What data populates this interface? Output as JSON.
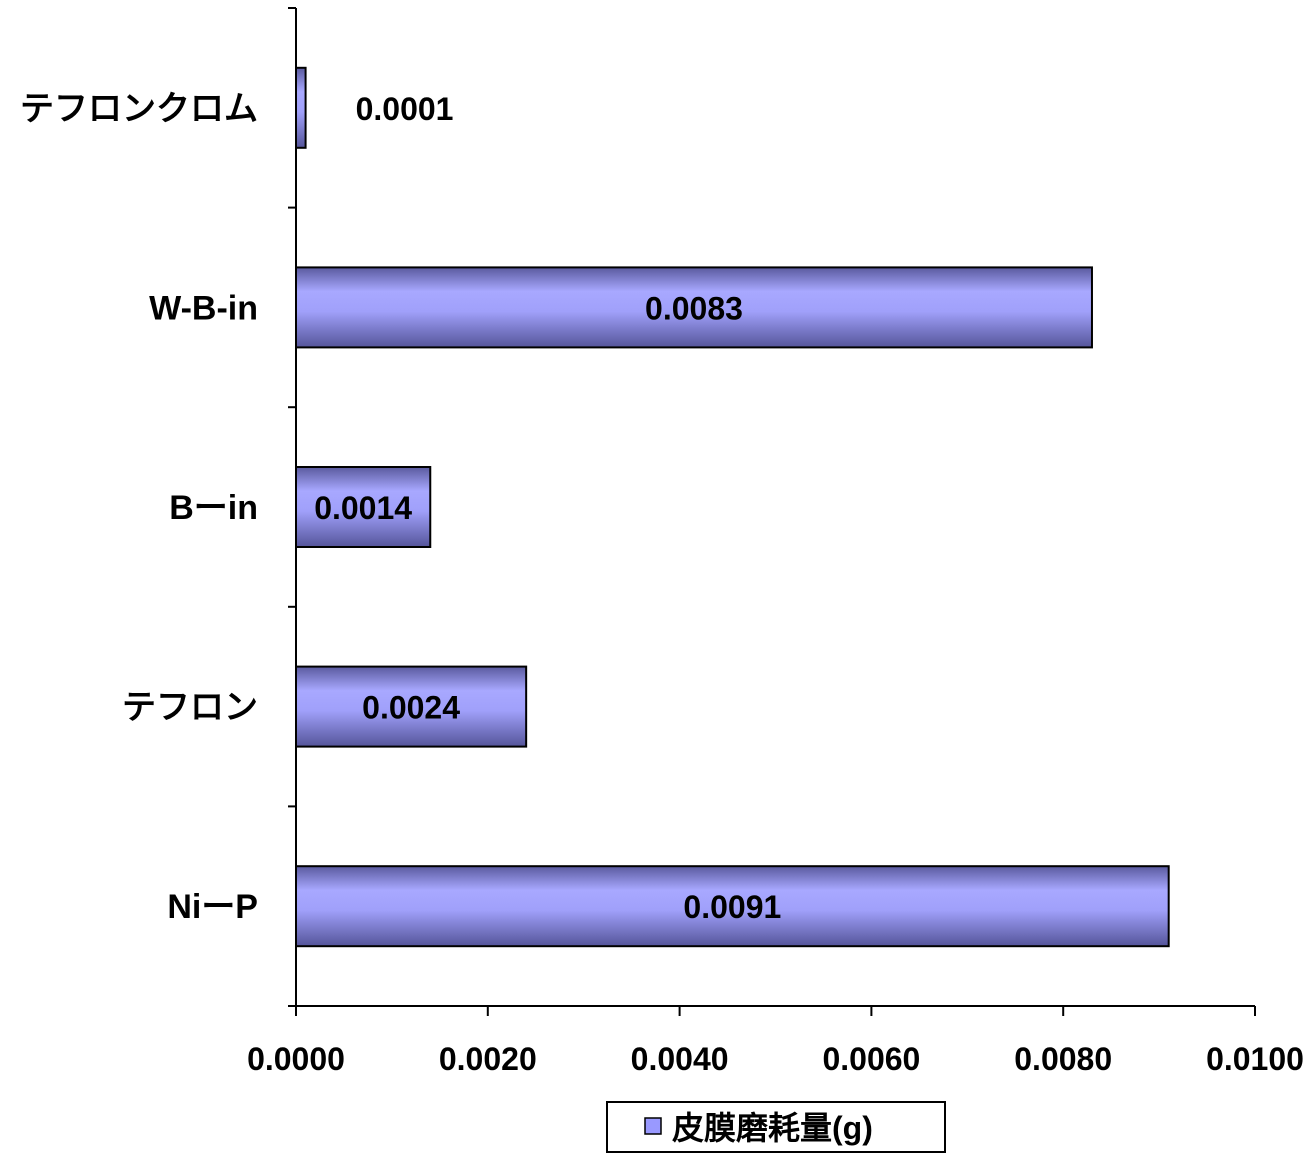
{
  "chart_data": {
    "type": "bar",
    "orientation": "horizontal",
    "categories": [
      "テフロンクロム",
      "W-B-in",
      "Bーin",
      "テフロン",
      "NiーP"
    ],
    "series": [
      {
        "name": "皮膜磨耗量(g)",
        "values": [
          0.0001,
          0.0083,
          0.0014,
          0.0024,
          0.0091
        ]
      }
    ],
    "data_labels": [
      "0.0001",
      "0.0083",
      "0.0014",
      "0.0024",
      "0.0091"
    ],
    "xlim": [
      0,
      0.01
    ],
    "xticks": [
      0,
      0.002,
      0.004,
      0.006,
      0.008,
      0.01
    ],
    "xtick_labels": [
      "0.0000",
      "0.0020",
      "0.0040",
      "0.0060",
      "0.0080",
      "0.0100"
    ],
    "grid": false,
    "legend_position": "bottom",
    "bar_color": "#9999ff",
    "bar_outline": "#000000"
  }
}
